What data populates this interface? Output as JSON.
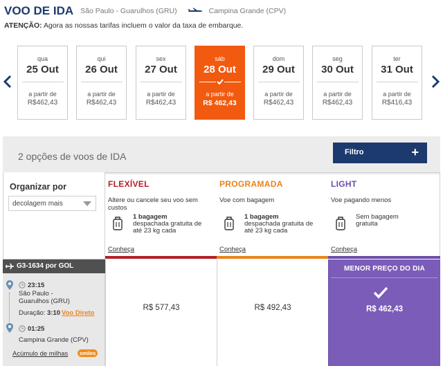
{
  "header": {
    "title": "VOO DE IDA",
    "origin": "São Paulo - Guarulhos (GRU)",
    "destination": "Campina Grande (CPV)",
    "notice_label": "ATENÇÃO:",
    "notice_text": "Agora as nossas tarifas incluem o valor da taxa de embarque."
  },
  "dates": [
    {
      "dow": "qua",
      "date": "25 Out",
      "from": "a partir de",
      "price": "R$462,43",
      "selected": false
    },
    {
      "dow": "qui",
      "date": "26 Out",
      "from": "a partir de",
      "price": "R$462,43",
      "selected": false
    },
    {
      "dow": "sex",
      "date": "27 Out",
      "from": "a partir de",
      "price": "R$462,43",
      "selected": false
    },
    {
      "dow": "sáb",
      "date": "28 Out",
      "from": "a partir de",
      "price": "R$ 462,43",
      "selected": true
    },
    {
      "dow": "dom",
      "date": "29 Out",
      "from": "a partir de",
      "price": "R$462,43",
      "selected": false
    },
    {
      "dow": "seg",
      "date": "30 Out",
      "from": "a partir de",
      "price": "R$462,43",
      "selected": false
    },
    {
      "dow": "ter",
      "date": "31 Out",
      "from": "a partir de",
      "price": "R$416,43",
      "selected": false
    }
  ],
  "options": {
    "count_text": "2 opções de voos de IDA",
    "filter_label": "Filtro",
    "filter_plus": "+"
  },
  "sort": {
    "label": "Organizar por",
    "value": "decolagem mais"
  },
  "fares": [
    {
      "name": "FLEXÍVEL",
      "color": "#b3202a",
      "desc": "Altere ou cancele seu voo sem custos",
      "bag_count": "1 bagagem",
      "bag_text": "despachada gratuita de até 23 kg cada",
      "more": "Conheça"
    },
    {
      "name": "PROGRAMADA",
      "color": "#e8841a",
      "desc": "Voe com bagagem",
      "bag_count": "1 bagagem",
      "bag_text": "despachada gratuita de até 23 kg cada",
      "more": "Conheça"
    },
    {
      "name": "LIGHT",
      "color": "#6a4ea8",
      "desc": "Voe pagando menos",
      "bag_count": "Sem bagagem",
      "bag_text": "gratuita",
      "more": "Conheça"
    }
  ],
  "flight": {
    "code": "G3-1634 por  GOL",
    "dep_time": "23:15",
    "dep_place_1": "São Paulo -",
    "dep_place_2": "Guarulhos (GRU)",
    "duration_label": "Duração:",
    "duration": "3:10",
    "direct_label": "Voo Direto",
    "arr_time": "01:25",
    "arr_place": "Campina Grande (CPV)",
    "miles_label": "Acúmulo de milhas",
    "miles_logo": "smiles"
  },
  "prices": {
    "flexivel": "R$ 577,43",
    "programada": "R$ 492,43",
    "light": "R$ 462,43",
    "best_label": "MENOR  PREÇO DO DIA"
  },
  "colors": {
    "navy": "#1c3a6e",
    "orange": "#f25a0f",
    "purple": "#7b5cb8"
  }
}
